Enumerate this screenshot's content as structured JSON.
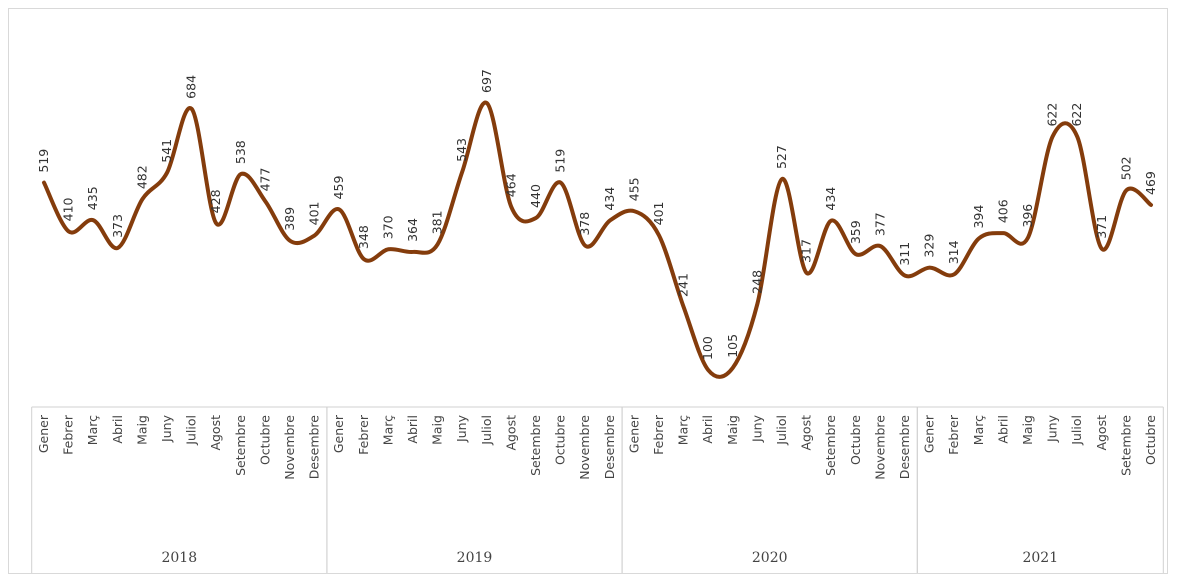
{
  "chart_data": {
    "type": "line",
    "title": "",
    "xlabel": "",
    "ylabel": "",
    "ylim": [
      100,
      697
    ],
    "grid": false,
    "legend": "none",
    "line_color": "#843c0c",
    "years": [
      {
        "label": "2018",
        "months": [
          "Gener",
          "Febrer",
          "Març",
          "Abril",
          "Maig",
          "Juny",
          "Juliol",
          "Agost",
          "Setembre",
          "Octubre",
          "Novembre",
          "Desembre"
        ],
        "values": [
          519,
          410,
          435,
          373,
          482,
          541,
          684,
          428,
          538,
          477,
          389,
          401
        ]
      },
      {
        "label": "2019",
        "months": [
          "Gener",
          "Febrer",
          "Març",
          "Abril",
          "Maig",
          "Juny",
          "Juliol",
          "Agost",
          "Setembre",
          "Octubre",
          "Novembre",
          "Desembre"
        ],
        "values": [
          459,
          348,
          370,
          364,
          381,
          543,
          697,
          464,
          440,
          519,
          378,
          434
        ]
      },
      {
        "label": "2020",
        "months": [
          "Gener",
          "Febrer",
          "Març",
          "Abril",
          "Maig",
          "Juny",
          "Juliol",
          "Agost",
          "Setembre",
          "Octubre",
          "Novembre",
          "Desembre"
        ],
        "values": [
          455,
          401,
          241,
          100,
          105,
          248,
          527,
          317,
          434,
          359,
          377,
          311
        ]
      },
      {
        "label": "2021",
        "months": [
          "Gener",
          "Febrer",
          "Març",
          "Abril",
          "Maig",
          "Juny",
          "Juliol",
          "Agost",
          "Setembre",
          "Octubre"
        ],
        "values": [
          329,
          314,
          394,
          406,
          396,
          622,
          622,
          371,
          502,
          469
        ]
      }
    ]
  }
}
